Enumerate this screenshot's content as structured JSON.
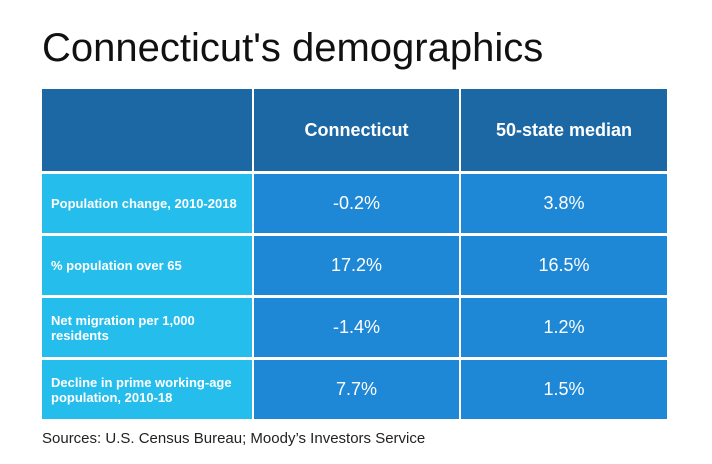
{
  "title": "Connecticut's demographics",
  "source": "Sources: U.S. Census Bureau; Moody’s Investors Service",
  "colors": {
    "header_bg": "#1b68a5",
    "label_bg": "#24bdec",
    "value_bg": "#1e88d6",
    "text_on_cells": "#ffffff"
  },
  "chart_data": {
    "type": "table",
    "columns": [
      "",
      "Connecticut",
      "50-state median"
    ],
    "rows": [
      {
        "label": "Population change, 2010-2018",
        "connecticut": "-0.2%",
        "median": "3.8%"
      },
      {
        "label": "% population over 65",
        "connecticut": "17.2%",
        "median": "16.5%"
      },
      {
        "label": "Net migration per 1,000 residents",
        "connecticut": "-1.4%",
        "median": "1.2%"
      },
      {
        "label": "Decline in prime working-age population, 2010-18",
        "connecticut": "7.7%",
        "median": "1.5%"
      }
    ]
  }
}
